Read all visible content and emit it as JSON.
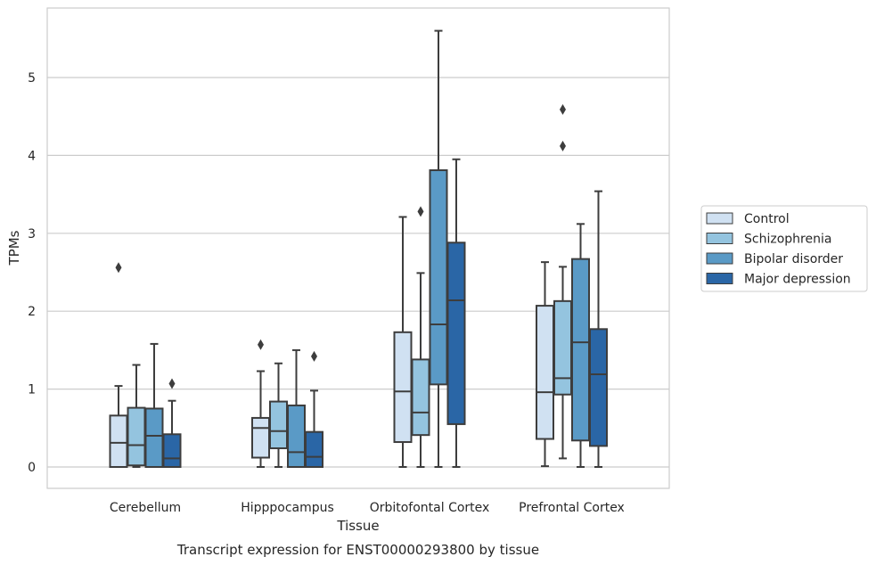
{
  "chart_data": {
    "type": "box",
    "caption": "Transcript expression for ENST00000293800 by tissue",
    "xlabel": "Tissue",
    "ylabel": "TPMs",
    "ylim": [
      -0.28,
      5.9
    ],
    "yticks": [
      "0",
      "1",
      "2",
      "3",
      "4",
      "5"
    ],
    "grid": true,
    "legend_position": "right",
    "categories": [
      "Cerebellum",
      "Hipppocampus",
      "Orbitofontal Cortex",
      "Prefrontal Cortex"
    ],
    "series": [
      {
        "name": "Control",
        "color": "#d0e1f2",
        "boxes": [
          {
            "whislo": 0.0,
            "q1": 0.0,
            "med": 0.31,
            "q3": 0.66,
            "whishi": 1.04,
            "fliers": [
              2.56
            ]
          },
          {
            "whislo": 0.0,
            "q1": 0.12,
            "med": 0.5,
            "q3": 0.63,
            "whishi": 1.23,
            "fliers": [
              1.57
            ]
          },
          {
            "whislo": 0.0,
            "q1": 0.32,
            "med": 0.97,
            "q3": 1.73,
            "whishi": 3.21,
            "fliers": []
          },
          {
            "whislo": 0.01,
            "q1": 0.36,
            "med": 0.96,
            "q3": 2.07,
            "whishi": 2.63,
            "fliers": []
          }
        ]
      },
      {
        "name": "Schizophrenia",
        "color": "#94c4df",
        "boxes": [
          {
            "whislo": 0.0,
            "q1": 0.02,
            "med": 0.28,
            "q3": 0.76,
            "whishi": 1.31,
            "fliers": []
          },
          {
            "whislo": 0.0,
            "q1": 0.24,
            "med": 0.46,
            "q3": 0.84,
            "whishi": 1.33,
            "fliers": []
          },
          {
            "whislo": 0.0,
            "q1": 0.41,
            "med": 0.7,
            "q3": 1.38,
            "whishi": 2.49,
            "fliers": [
              3.28
            ]
          },
          {
            "whislo": 0.11,
            "q1": 0.93,
            "med": 1.14,
            "q3": 2.13,
            "whishi": 2.57,
            "fliers": [
              4.12,
              4.59
            ]
          }
        ]
      },
      {
        "name": "Bipolar disorder",
        "color": "#5a9ac6",
        "boxes": [
          {
            "whislo": 0.0,
            "q1": 0.0,
            "med": 0.4,
            "q3": 0.75,
            "whishi": 1.58,
            "fliers": []
          },
          {
            "whislo": 0.0,
            "q1": 0.0,
            "med": 0.19,
            "q3": 0.79,
            "whishi": 1.5,
            "fliers": []
          },
          {
            "whislo": 0.0,
            "q1": 1.06,
            "med": 1.83,
            "q3": 3.81,
            "whishi": 5.6,
            "fliers": []
          },
          {
            "whislo": 0.0,
            "q1": 0.34,
            "med": 1.6,
            "q3": 2.67,
            "whishi": 3.12,
            "fliers": []
          }
        ]
      },
      {
        "name": "Major depression",
        "color": "#2a66a6",
        "boxes": [
          {
            "whislo": 0.0,
            "q1": 0.0,
            "med": 0.11,
            "q3": 0.42,
            "whishi": 0.85,
            "fliers": [
              1.07
            ]
          },
          {
            "whislo": 0.0,
            "q1": 0.0,
            "med": 0.13,
            "q3": 0.45,
            "whishi": 0.98,
            "fliers": [
              1.42
            ]
          },
          {
            "whislo": 0.0,
            "q1": 0.55,
            "med": 2.14,
            "q3": 2.88,
            "whishi": 3.95,
            "fliers": []
          },
          {
            "whislo": 0.0,
            "q1": 0.27,
            "med": 1.19,
            "q3": 1.77,
            "whishi": 3.54,
            "fliers": []
          }
        ]
      }
    ]
  }
}
